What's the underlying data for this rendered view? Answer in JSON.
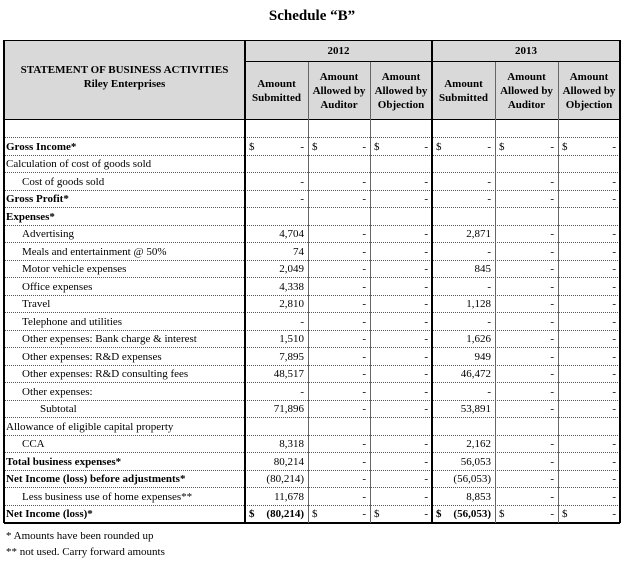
{
  "title": "Schedule “B”",
  "header": {
    "statement": "STATEMENT OF BUSINESS ACTIVITIES",
    "company": "Riley Enterprises",
    "years": [
      "2012",
      "2013"
    ],
    "columns": [
      "Amount Submitted",
      "Amount Allowed by Auditor",
      "Amount Allowed by Objection",
      "Amount Submitted",
      "Amount Allowed by Auditor",
      "Amount Allowed by Objection"
    ]
  },
  "rows": [
    {
      "label": "Gross Income*",
      "cells": [
        {
          "currency": "$",
          "value": "-"
        },
        {
          "currency": "$",
          "value": "-"
        },
        {
          "currency": "$",
          "value": "-"
        },
        {
          "currency": "$",
          "value": "-"
        },
        {
          "currency": "$",
          "value": "-"
        },
        {
          "currency": "$",
          "value": "-"
        }
      ]
    },
    {
      "label": "Calculation of cost of goods sold",
      "cells": [
        null,
        null,
        null,
        null,
        null,
        null
      ]
    },
    {
      "label": "Cost of goods sold",
      "cells": [
        "-",
        "-",
        "-",
        "-",
        "-",
        "-"
      ]
    },
    {
      "label": "Gross Profit*",
      "cells": [
        "-",
        "-",
        "-",
        "-",
        "-",
        "-"
      ]
    },
    {
      "label": "Expenses*",
      "cells": [
        null,
        null,
        null,
        null,
        null,
        null
      ]
    },
    {
      "label": "Advertising",
      "cells": [
        "4,704",
        "-",
        "-",
        "2,871",
        "-",
        "-"
      ]
    },
    {
      "label": "Meals and entertainment @ 50%",
      "cells": [
        "74",
        "-",
        "-",
        "-",
        "-",
        "-"
      ]
    },
    {
      "label": "Motor vehicle expenses",
      "cells": [
        "2,049",
        "-",
        "-",
        "845",
        "-",
        "-"
      ]
    },
    {
      "label": "Office expenses",
      "cells": [
        "4,338",
        "-",
        "-",
        "-",
        "-",
        "-"
      ]
    },
    {
      "label": "Travel",
      "cells": [
        "2,810",
        "-",
        "-",
        "1,128",
        "-",
        "-"
      ]
    },
    {
      "label": "Telephone and utilities",
      "cells": [
        "-",
        "-",
        "-",
        "-",
        "-",
        "-"
      ]
    },
    {
      "label": "Other expenses: Bank charge & interest",
      "cells": [
        "1,510",
        "-",
        "-",
        "1,626",
        "-",
        "-"
      ]
    },
    {
      "label": "Other expenses: R&D expenses",
      "cells": [
        "7,895",
        "-",
        "-",
        "949",
        "-",
        "-"
      ]
    },
    {
      "label": "Other expenses: R&D consulting fees",
      "cells": [
        "48,517",
        "-",
        "-",
        "46,472",
        "-",
        "-"
      ]
    },
    {
      "label": "Other expenses:",
      "cells": [
        "-",
        "-",
        "-",
        "-",
        "-",
        "-"
      ]
    },
    {
      "label": "Subtotal",
      "cells": [
        "71,896",
        "-",
        "-",
        "53,891",
        "-",
        "-"
      ]
    },
    {
      "label": "Allowance of eligible capital property",
      "cells": [
        null,
        null,
        null,
        null,
        null,
        null
      ]
    },
    {
      "label": "CCA",
      "cells": [
        "8,318",
        "-",
        "-",
        "2,162",
        "-",
        "-"
      ]
    },
    {
      "label": "Total business expenses*",
      "cells": [
        "80,214",
        "-",
        "-",
        "56,053",
        "-",
        "-"
      ]
    },
    {
      "label": "Net Income (loss) before adjustments*",
      "cells": [
        "(80,214)",
        "-",
        "-",
        "(56,053)",
        "-",
        "-"
      ]
    },
    {
      "label": "Less business use of home expenses**",
      "cells": [
        "11,678",
        "-",
        "-",
        "8,853",
        "-",
        "-"
      ]
    },
    {
      "label": "Net Income (loss)*",
      "cells": [
        {
          "currency": "$",
          "value": "(80,214)"
        },
        {
          "currency": "$",
          "value": "-"
        },
        {
          "currency": "$",
          "value": "-"
        },
        {
          "currency": "$",
          "value": "(56,053)"
        },
        {
          "currency": "$",
          "value": "-"
        },
        {
          "currency": "$",
          "value": "-"
        }
      ]
    }
  ],
  "footnotes": [
    "* Amounts have been rounded up",
    "** not used. Carry forward amounts"
  ]
}
